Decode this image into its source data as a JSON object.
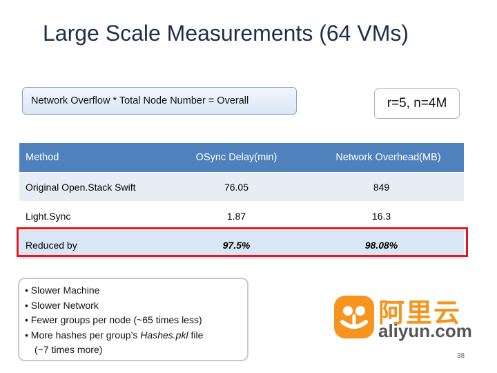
{
  "title": "Large Scale Measurements (64 VMs)",
  "formula": "Network Overflow * Total Node Number = Overall",
  "params": "r=5, n=4M",
  "table": {
    "headers": [
      "Method",
      "OSync Delay(min)",
      "Network  Overhead(MB)"
    ],
    "rows": [
      [
        "Original Open.Stack Swift",
        "76.05",
        "849"
      ],
      [
        "Light.Sync",
        "1.87",
        "16.3"
      ],
      [
        "Reduced by",
        "97.5%",
        "98.08%"
      ]
    ]
  },
  "notes": {
    "line1": "Slower Machine",
    "line2": "Slower Network",
    "line3": "Fewer groups per node (~65 times less)",
    "line4_pre": "More hashes per group’s ",
    "line4_em": "Hashes.pkl",
    "line4_post": " file",
    "line5": "(~7 times more)"
  },
  "logo": {
    "cn": "阿里云",
    "en": "aliyun.com",
    "color": "#f7941d"
  },
  "page_number": "38",
  "colors": {
    "header_bg": "#4f81bd",
    "highlight_border": "#e8151b",
    "title": "#1f2f4a"
  }
}
